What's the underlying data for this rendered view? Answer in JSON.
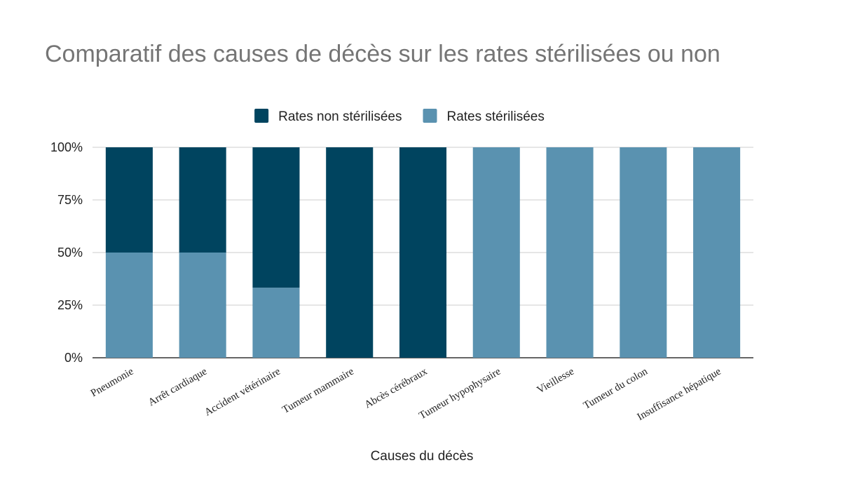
{
  "chart_data": {
    "type": "bar",
    "stacked": true,
    "title": "Comparatif des causes de décès sur les rates stérilisées ou non",
    "xlabel": "Causes du décès",
    "ylabel": "",
    "ylim": [
      0,
      100
    ],
    "yticks": [
      "0%",
      "25%",
      "50%",
      "75%",
      "100%"
    ],
    "grid": true,
    "legend_position": "top",
    "categories": [
      "Pneumonie",
      "Arrêt cardiaque",
      "Accident vétérinaire",
      "Tumeur mammaire",
      "Abcès cérébraux",
      "Tumeur hypophysaire",
      "Vieillesse",
      "Tumeur du colon",
      "Insuffisance hépatique"
    ],
    "series": [
      {
        "name": "Rates stérilisées",
        "color": "#5a92b0",
        "values": [
          50,
          50,
          33.3,
          0,
          0,
          100,
          100,
          100,
          100
        ]
      },
      {
        "name": "Rates non stérilisées",
        "color": "#00445f",
        "values": [
          50,
          50,
          66.7,
          100,
          100,
          0,
          0,
          0,
          0
        ]
      }
    ],
    "legend_order": [
      1,
      0
    ]
  }
}
